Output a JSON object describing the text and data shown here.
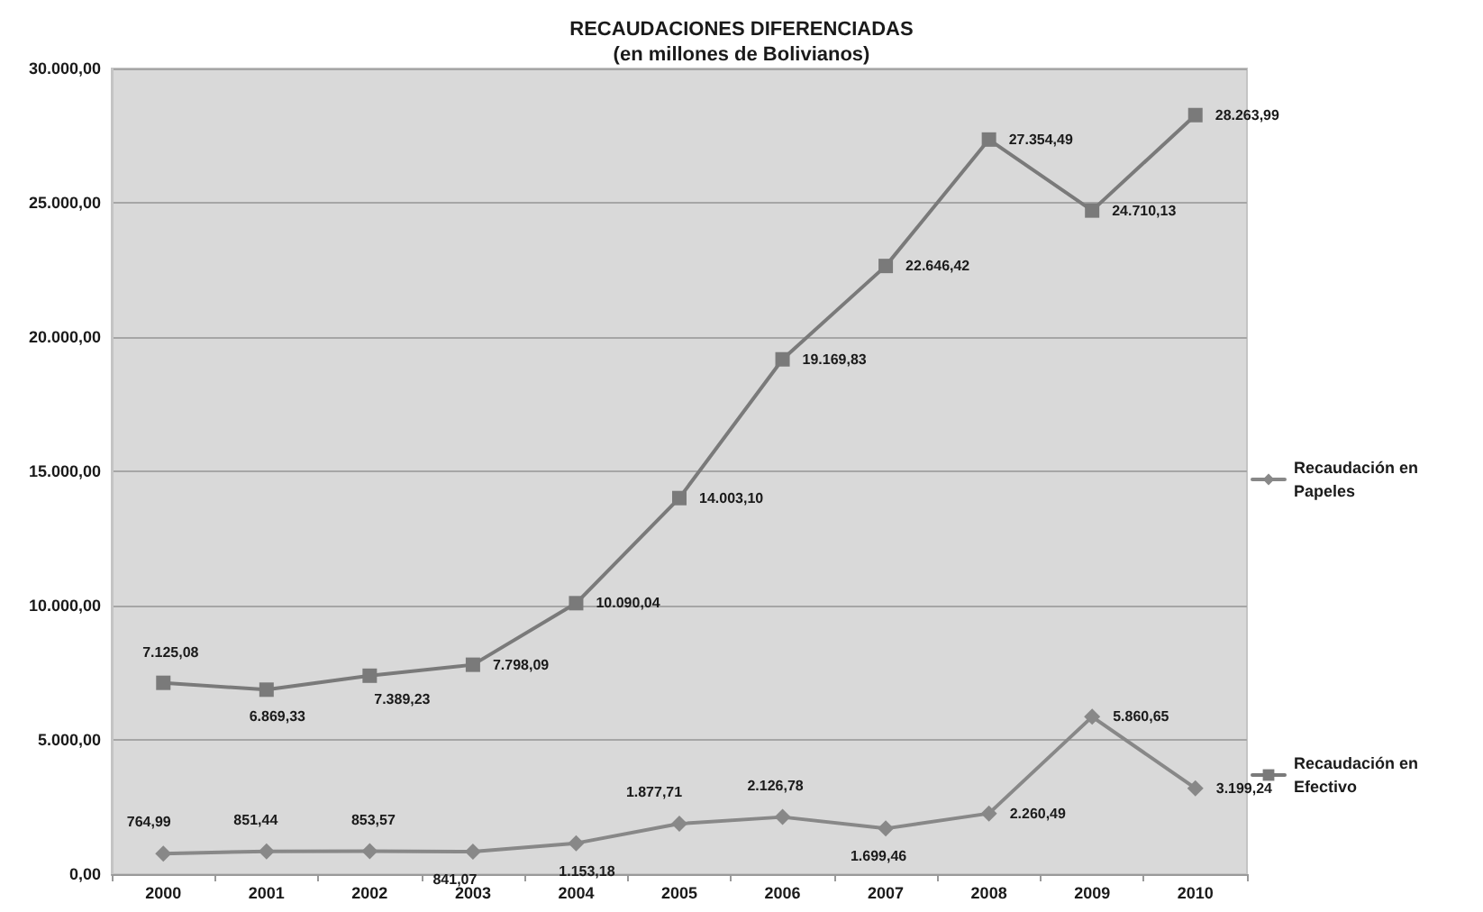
{
  "chart_data": {
    "type": "line",
    "title": "RECAUDACIONES DIFERENCIADAS",
    "subtitle": "(en millones de Bolivianos)",
    "categories": [
      "2000",
      "2001",
      "2002",
      "2003",
      "2004",
      "2005",
      "2006",
      "2007",
      "2008",
      "2009",
      "2010"
    ],
    "series": [
      {
        "name": "Recaudación en Papeles",
        "color": "#888888",
        "marker": "diamond",
        "values": [
          764.99,
          851.44,
          853.57,
          841.07,
          1153.18,
          1877.71,
          2126.78,
          1699.46,
          2260.49,
          5860.65,
          3199.24
        ],
        "value_labels": [
          "764,99",
          "851,44",
          "853,57",
          "841,07",
          "1.153,18",
          "1.877,71",
          "2.126,78",
          "1.699,46",
          "2.260,49",
          "5.860,65",
          "3.199,24"
        ]
      },
      {
        "name": "Recaudación en Efectivo",
        "color": "#7a7a7a",
        "marker": "square",
        "values": [
          7125.08,
          6869.33,
          7389.23,
          7798.09,
          10090.04,
          14003.1,
          19169.83,
          22646.42,
          27354.49,
          24710.13,
          28263.99
        ],
        "value_labels": [
          "7.125,08",
          "6.869,33",
          "7.389,23",
          "7.798,09",
          "10.090,04",
          "14.003,10",
          "19.169,83",
          "22.646,42",
          "27.354,49",
          "24.710,13",
          "28.263,99"
        ]
      }
    ],
    "ylim": [
      0,
      30000
    ],
    "yticks": [
      {
        "value": 0,
        "label": "0,00"
      },
      {
        "value": 5000,
        "label": "5.000,00"
      },
      {
        "value": 10000,
        "label": "10.000,00"
      },
      {
        "value": 15000,
        "label": "15.000,00"
      },
      {
        "value": 20000,
        "label": "20.000,00"
      },
      {
        "value": 25000,
        "label": "25.000,00"
      },
      {
        "value": 30000,
        "label": "30.000,00"
      }
    ],
    "grid": "y",
    "legend": "right"
  }
}
